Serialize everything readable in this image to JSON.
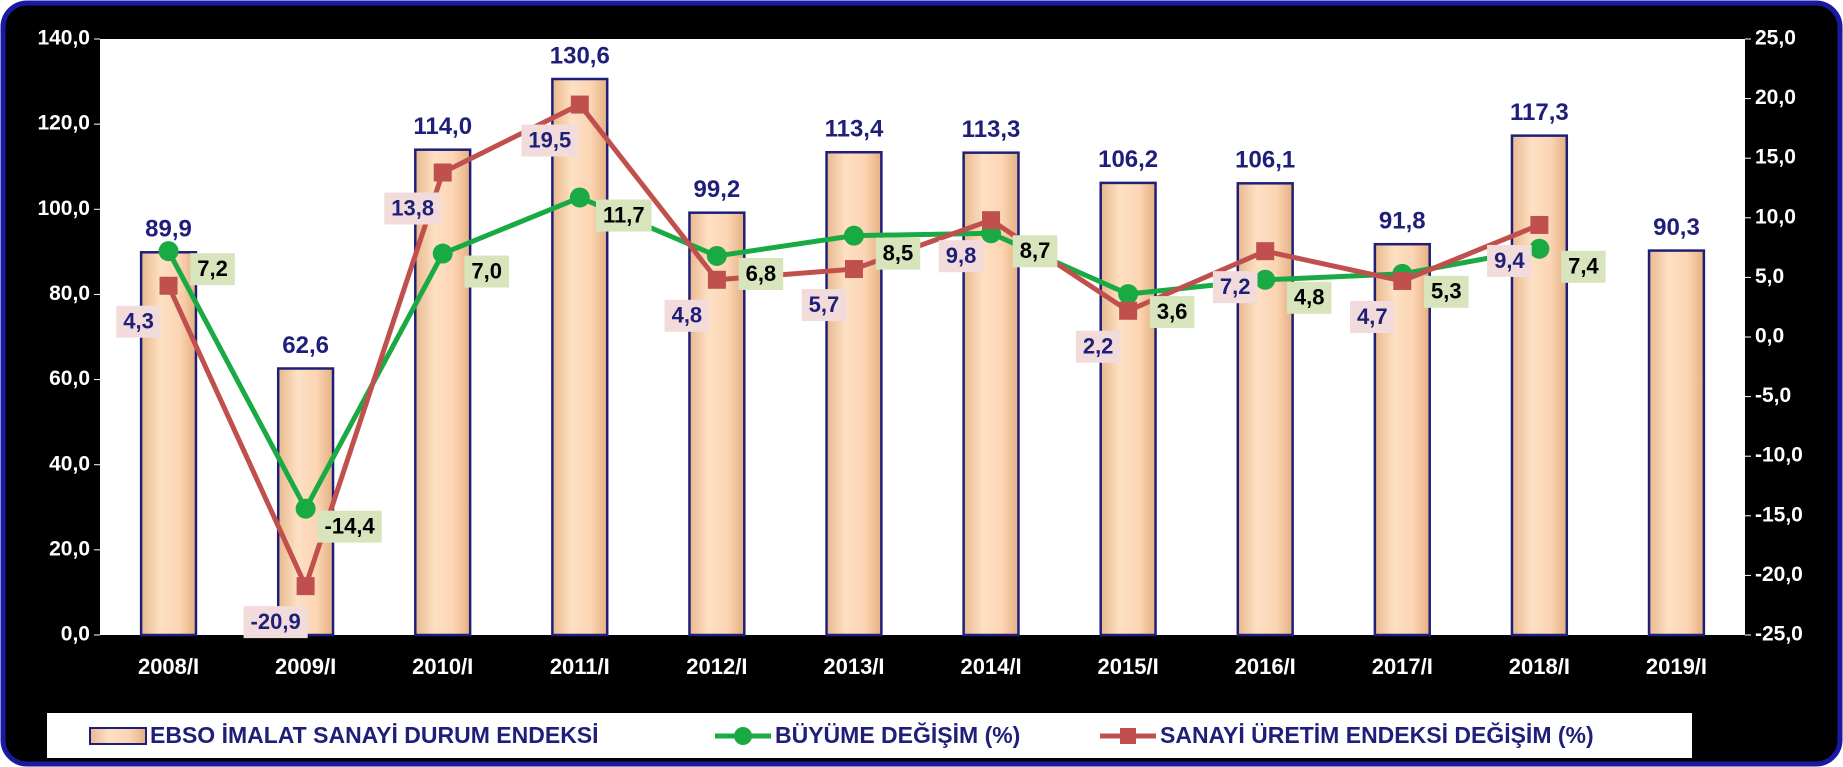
{
  "chart_data": {
    "type": "bar",
    "categories": [
      "2008/I",
      "2009/I",
      "2010/I",
      "2011/I",
      "2012/I",
      "2013/I",
      "2014/I",
      "2015/I",
      "2016/I",
      "2017/I",
      "2018/I",
      "2019/I"
    ],
    "series": [
      {
        "name": "EBSO İMALAT SANAYİ DURUM ENDEKSİ",
        "type": "bar",
        "color": "#fcd5b4",
        "values": [
          89.9,
          62.6,
          114.0,
          130.6,
          99.2,
          113.4,
          113.3,
          106.2,
          106.1,
          91.8,
          117.3,
          90.3
        ],
        "value_labels": [
          "89,9",
          "62,6",
          "114,0",
          "130,6",
          "99,2",
          "113,4",
          "113,3",
          "106,2",
          "106,1",
          "91,8",
          "117,3",
          "90,3"
        ]
      },
      {
        "name": "BÜYÜME DEĞİŞİM (%)",
        "type": "line",
        "axis": "y2",
        "color": "#1aaa44",
        "values": [
          7.2,
          -14.4,
          7.0,
          11.7,
          6.8,
          8.5,
          8.7,
          3.6,
          4.8,
          5.3,
          7.4,
          null
        ],
        "value_labels": [
          "7,2",
          "-14,4",
          "7,0",
          "11,7",
          "6,8",
          "8,5",
          "8,7",
          "3,6",
          "4,8",
          "5,3",
          "7,4",
          null
        ]
      },
      {
        "name": "SANAYİ ÜRETİM ENDEKSİ DEĞİŞİM (%)",
        "type": "line",
        "axis": "y2",
        "color": "#c0504d",
        "values": [
          4.3,
          -20.9,
          13.8,
          19.5,
          4.8,
          5.7,
          9.8,
          2.2,
          7.2,
          4.7,
          9.4,
          null
        ],
        "value_labels": [
          "4,3",
          "-20,9",
          "13,8",
          "19,5",
          "4,8",
          "5,7",
          "9,8",
          "2,2",
          "7,2",
          "4,7",
          "9,4",
          null
        ]
      }
    ],
    "ylim": [
      0,
      140
    ],
    "yticks": [
      {
        "value": 0,
        "label": "0,0"
      },
      {
        "value": 20,
        "label": "20,0"
      },
      {
        "value": 40,
        "label": "40,0"
      },
      {
        "value": 60,
        "label": "60,0"
      },
      {
        "value": 80,
        "label": "80,0"
      },
      {
        "value": 100,
        "label": "100,0"
      },
      {
        "value": 120,
        "label": "120,0"
      },
      {
        "value": 140,
        "label": "140,0"
      }
    ],
    "y2lim": [
      -25,
      25
    ],
    "y2ticks": [
      {
        "value": -25,
        "label": "-25,0"
      },
      {
        "value": -20,
        "label": "-20,0"
      },
      {
        "value": -15,
        "label": "-15,0"
      },
      {
        "value": -10,
        "label": "-10,0"
      },
      {
        "value": -5,
        "label": "-5,0"
      },
      {
        "value": 0,
        "label": "0,0"
      },
      {
        "value": 5,
        "label": "5,0"
      },
      {
        "value": 10,
        "label": "10,0"
      },
      {
        "value": 15,
        "label": "15,0"
      },
      {
        "value": 20,
        "label": "20,0"
      },
      {
        "value": 25,
        "label": "25,0"
      }
    ],
    "legend": "bottom"
  }
}
